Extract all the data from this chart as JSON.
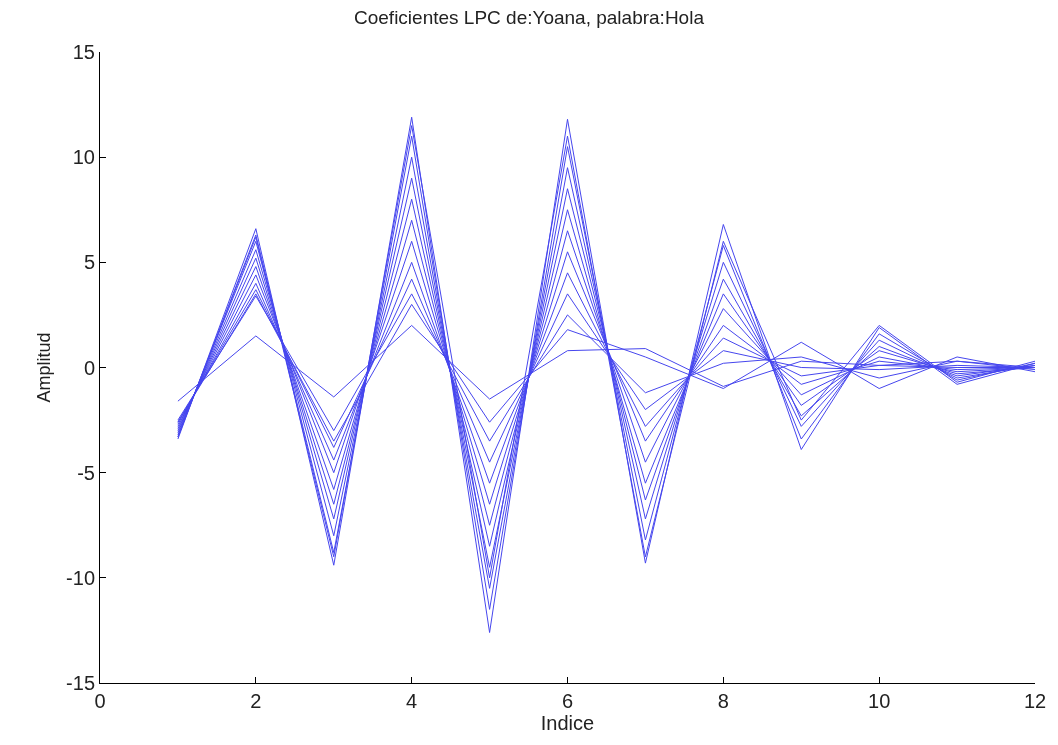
{
  "chart_data": {
    "type": "line",
    "title": "Coeficientes LPC de:Yoana, palabra:Hola",
    "xlabel": "Indice",
    "ylabel": "Amplitud",
    "x": [
      1,
      2,
      3,
      4,
      5,
      6,
      7,
      8,
      9,
      10,
      11,
      12
    ],
    "xlim": [
      0,
      12
    ],
    "xticks": [
      0,
      2,
      4,
      6,
      8,
      10,
      12
    ],
    "ylim": [
      -15,
      15
    ],
    "yticks": [
      -15,
      -10,
      -5,
      0,
      5,
      10,
      15
    ],
    "marker": "none",
    "line_style": "solid",
    "series": [
      {
        "color": "#4646ee",
        "values": [
          -3.4,
          6.6,
          -9.4,
          11.9,
          -12.6,
          11.8,
          -9.3,
          6.8,
          -3.9,
          1.9,
          -0.8,
          0.2
        ]
      },
      {
        "color": "#4646ee",
        "values": [
          -3.3,
          6.2,
          -9.0,
          11.5,
          -10.0,
          11.0,
          -9.0,
          6.0,
          -2.5,
          2.0,
          -0.7,
          0.3
        ]
      },
      {
        "color": "#4646ee",
        "values": [
          -3.3,
          6.3,
          -8.8,
          11.0,
          -11.5,
          10.5,
          -8.2,
          5.8,
          -3.4,
          1.6,
          -0.6,
          0.2
        ]
      },
      {
        "color": "#4646ee",
        "values": [
          -3.2,
          6.0,
          -8.0,
          10.0,
          -10.5,
          9.5,
          -7.2,
          5.0,
          -2.8,
          1.3,
          -0.5,
          0.1
        ]
      },
      {
        "color": "#4646ee",
        "values": [
          -3.1,
          5.6,
          -7.2,
          9.0,
          -9.5,
          8.5,
          -6.3,
          4.2,
          -2.3,
          1.0,
          -0.4,
          0.1
        ]
      },
      {
        "color": "#4646ee",
        "values": [
          -3.0,
          5.2,
          -6.5,
          8.0,
          -8.5,
          7.5,
          -5.5,
          3.5,
          -1.8,
          0.8,
          -0.3,
          0.0
        ]
      },
      {
        "color": "#4646ee",
        "values": [
          -2.9,
          4.8,
          -5.8,
          7.0,
          -7.5,
          6.5,
          -4.5,
          2.8,
          -1.3,
          0.5,
          -0.2,
          0.0
        ]
      },
      {
        "color": "#4646ee",
        "values": [
          -2.8,
          4.4,
          -5.0,
          6.0,
          -6.5,
          5.5,
          -3.5,
          2.0,
          -0.8,
          0.3,
          -0.1,
          0.0
        ]
      },
      {
        "color": "#4646ee",
        "values": [
          -2.7,
          4.0,
          -4.4,
          5.0,
          -5.5,
          4.5,
          -2.8,
          1.4,
          -0.4,
          0.1,
          0.0,
          0.0
        ]
      },
      {
        "color": "#4646ee",
        "values": [
          -2.6,
          3.7,
          -3.8,
          4.2,
          -4.5,
          3.5,
          -2.0,
          0.8,
          0.0,
          -0.1,
          0.1,
          0.0
        ]
      },
      {
        "color": "#4646ee",
        "values": [
          -2.5,
          3.4,
          -3.0,
          3.5,
          -3.5,
          2.5,
          -1.2,
          0.2,
          0.5,
          -0.5,
          0.3,
          -0.1
        ]
      },
      {
        "color": "#4646ee",
        "values": [
          -2.6,
          3.5,
          -3.5,
          3.0,
          -2.6,
          1.8,
          0.5,
          -1.0,
          1.2,
          -1.0,
          0.5,
          -0.2
        ]
      },
      {
        "color": "#4646ee",
        "values": [
          -1.6,
          1.5,
          -1.4,
          2.0,
          -1.5,
          0.8,
          0.9,
          -0.9,
          0.3,
          0.1,
          0.3,
          0.0
        ]
      }
    ]
  }
}
